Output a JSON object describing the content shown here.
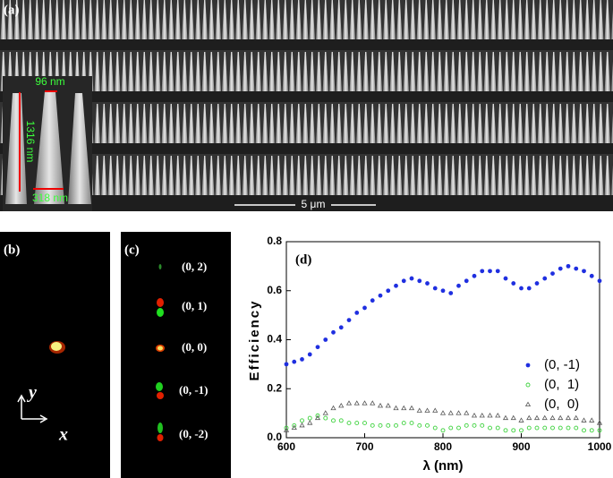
{
  "panels": {
    "a": {
      "label": "(a)",
      "top_width": "96 nm",
      "height": "1316 nm",
      "bottom_width": "318 nm",
      "scale_bar": "5 μm"
    },
    "b": {
      "label": "(b)",
      "axis_y": "y",
      "axis_x": "x"
    },
    "c": {
      "label": "(c)",
      "orders": [
        "(0, 2)",
        "(0, 1)",
        "(0, 0)",
        "(0, -1)",
        "(0, -2)"
      ]
    }
  },
  "chart_data": {
    "type": "scatter",
    "panel_label": "(d)",
    "xlabel": "λ (nm)",
    "ylabel": "Efficiency",
    "x": [
      600,
      610,
      620,
      630,
      640,
      650,
      660,
      670,
      680,
      690,
      700,
      710,
      720,
      730,
      740,
      750,
      760,
      770,
      780,
      790,
      800,
      810,
      820,
      830,
      840,
      850,
      860,
      870,
      880,
      890,
      900,
      910,
      920,
      930,
      940,
      950,
      960,
      970,
      980,
      990,
      1000
    ],
    "series": [
      {
        "name": "(0, -1)",
        "color": "#1f2fe0",
        "marker": "filled-circle",
        "values": [
          0.3,
          0.31,
          0.32,
          0.34,
          0.37,
          0.4,
          0.43,
          0.45,
          0.48,
          0.51,
          0.53,
          0.56,
          0.58,
          0.6,
          0.62,
          0.64,
          0.65,
          0.64,
          0.63,
          0.61,
          0.6,
          0.59,
          0.62,
          0.64,
          0.66,
          0.68,
          0.68,
          0.68,
          0.65,
          0.63,
          0.61,
          0.61,
          0.63,
          0.65,
          0.67,
          0.69,
          0.7,
          0.69,
          0.68,
          0.66,
          0.64
        ]
      },
      {
        "name": "(0,  1)",
        "color": "#3cd23c",
        "marker": "open-circle",
        "values": [
          0.04,
          0.05,
          0.07,
          0.08,
          0.09,
          0.08,
          0.07,
          0.07,
          0.06,
          0.06,
          0.06,
          0.05,
          0.05,
          0.05,
          0.05,
          0.06,
          0.06,
          0.05,
          0.05,
          0.04,
          0.03,
          0.04,
          0.04,
          0.05,
          0.05,
          0.05,
          0.04,
          0.04,
          0.03,
          0.03,
          0.03,
          0.04,
          0.04,
          0.04,
          0.04,
          0.04,
          0.04,
          0.04,
          0.03,
          0.03,
          0.03
        ]
      },
      {
        "name": "(0,  0)",
        "color": "#555555",
        "marker": "open-triangle",
        "values": [
          0.03,
          0.04,
          0.05,
          0.06,
          0.08,
          0.1,
          0.12,
          0.13,
          0.14,
          0.14,
          0.14,
          0.14,
          0.13,
          0.13,
          0.12,
          0.12,
          0.12,
          0.11,
          0.11,
          0.11,
          0.1,
          0.1,
          0.1,
          0.1,
          0.09,
          0.09,
          0.09,
          0.09,
          0.08,
          0.08,
          0.07,
          0.08,
          0.08,
          0.08,
          0.08,
          0.08,
          0.08,
          0.08,
          0.07,
          0.07,
          0.06
        ]
      }
    ],
    "xlim": [
      600,
      1000
    ],
    "xticks": [
      600,
      700,
      800,
      900,
      1000
    ],
    "ylim": [
      0,
      0.8
    ],
    "yticks": [
      {
        "value": 0,
        "label": "0.0"
      },
      0.2,
      0.4,
      0.6,
      0.8
    ],
    "legend": "right"
  }
}
